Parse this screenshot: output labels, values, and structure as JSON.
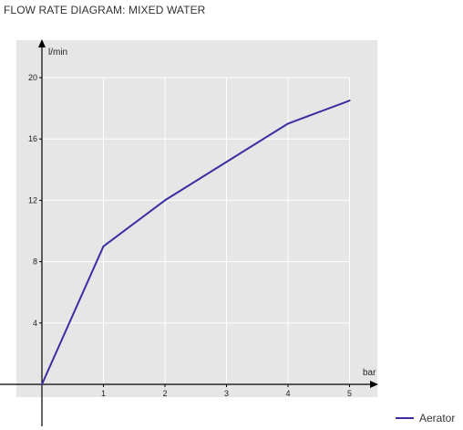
{
  "chart_data": {
    "type": "line",
    "title": "FLOW RATE DIAGRAM: MIXED WATER",
    "xlabel": "bar",
    "ylabel": "l/min",
    "xlim": [
      0,
      5
    ],
    "ylim": [
      0,
      20
    ],
    "x_ticks": [
      1,
      2,
      3,
      4,
      5
    ],
    "y_ticks": [
      4,
      8,
      12,
      16,
      20
    ],
    "grid": true,
    "legend_position": "bottom-right",
    "series": [
      {
        "name": "Aerator",
        "color": "#3b2fa0",
        "x": [
          0,
          1,
          2,
          3,
          4,
          5
        ],
        "y": [
          0,
          9,
          12,
          14.5,
          17,
          18.5
        ]
      }
    ]
  },
  "colors": {
    "plot_background": "#e6e6e6",
    "grid": "#ffffff",
    "axis": "#000000"
  }
}
